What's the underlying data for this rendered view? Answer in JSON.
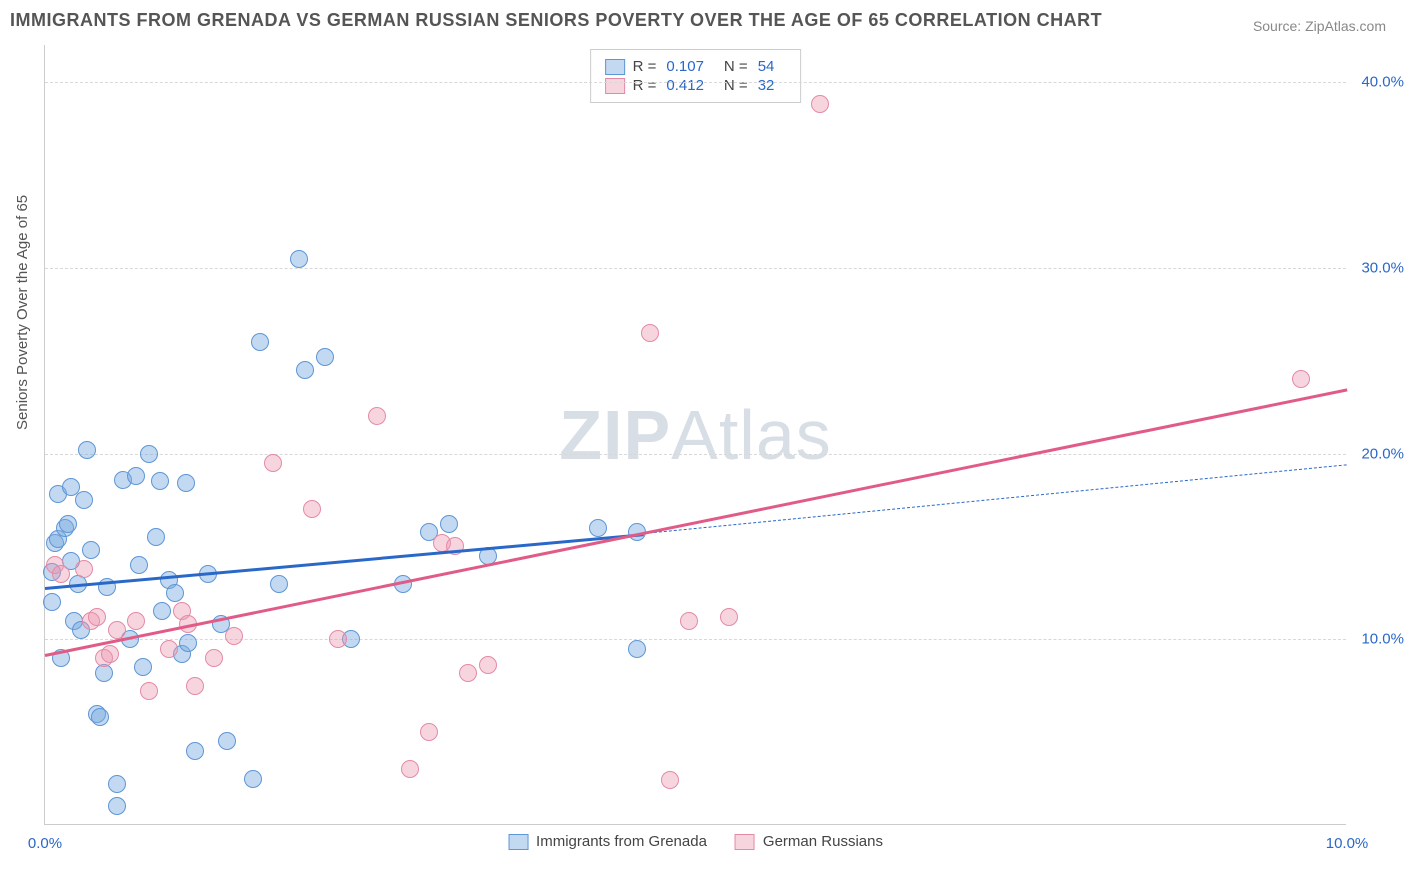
{
  "title": "IMMIGRANTS FROM GRENADA VS GERMAN RUSSIAN SENIORS POVERTY OVER THE AGE OF 65 CORRELATION CHART",
  "source_label": "Source: ZipAtlas.com",
  "y_axis_label": "Seniors Poverty Over the Age of 65",
  "watermark_a": "ZIP",
  "watermark_b": "Atlas",
  "chart": {
    "type": "scatter",
    "background_color": "#ffffff",
    "grid_color": "#d8d8d8",
    "xlim": [
      0,
      10
    ],
    "ylim": [
      0,
      42
    ],
    "x_ticks": [
      {
        "v": 0,
        "label": "0.0%"
      },
      {
        "v": 10,
        "label": "10.0%"
      }
    ],
    "y_ticks": [
      {
        "v": 10,
        "label": "10.0%"
      },
      {
        "v": 20,
        "label": "20.0%"
      },
      {
        "v": 30,
        "label": "30.0%"
      },
      {
        "v": 40,
        "label": "40.0%"
      }
    ],
    "title_fontsize": 18,
    "axis_tick_color": "#2968c8",
    "label_fontsize": 15
  },
  "series": [
    {
      "key": "grenada",
      "label": "Immigrants from Grenada",
      "fill_color": "rgba(120,170,225,0.45)",
      "stroke_color": "#5e96d6",
      "line_color": "#2968c8",
      "trend": {
        "x1": 0,
        "y1": 12.8,
        "x2": 4.6,
        "y2": 15.7,
        "dashed_extend_to_x": 10,
        "dashed_y": 19.4
      },
      "R": "0.107",
      "N": "54",
      "points": [
        [
          0.05,
          13.6
        ],
        [
          0.05,
          12.0
        ],
        [
          0.08,
          15.2
        ],
        [
          0.1,
          15.4
        ],
        [
          0.1,
          17.8
        ],
        [
          0.12,
          9.0
        ],
        [
          0.15,
          16.0
        ],
        [
          0.18,
          16.2
        ],
        [
          0.2,
          18.2
        ],
        [
          0.2,
          14.2
        ],
        [
          0.22,
          11.0
        ],
        [
          0.25,
          13.0
        ],
        [
          0.28,
          10.5
        ],
        [
          0.3,
          17.5
        ],
        [
          0.32,
          20.2
        ],
        [
          0.35,
          14.8
        ],
        [
          0.4,
          6.0
        ],
        [
          0.42,
          5.8
        ],
        [
          0.45,
          8.2
        ],
        [
          0.48,
          12.8
        ],
        [
          0.55,
          2.2
        ],
        [
          0.55,
          1.0
        ],
        [
          0.6,
          18.6
        ],
        [
          0.65,
          10.0
        ],
        [
          0.7,
          18.8
        ],
        [
          0.72,
          14.0
        ],
        [
          0.75,
          8.5
        ],
        [
          0.8,
          20.0
        ],
        [
          0.85,
          15.5
        ],
        [
          0.88,
          18.5
        ],
        [
          0.9,
          11.5
        ],
        [
          0.95,
          13.2
        ],
        [
          1.0,
          12.5
        ],
        [
          1.05,
          9.2
        ],
        [
          1.08,
          18.4
        ],
        [
          1.1,
          9.8
        ],
        [
          1.15,
          4.0
        ],
        [
          1.25,
          13.5
        ],
        [
          1.35,
          10.8
        ],
        [
          1.4,
          4.5
        ],
        [
          1.6,
          2.5
        ],
        [
          1.65,
          26.0
        ],
        [
          1.8,
          13.0
        ],
        [
          1.95,
          30.5
        ],
        [
          2.0,
          24.5
        ],
        [
          2.15,
          25.2
        ],
        [
          2.35,
          10.0
        ],
        [
          2.75,
          13.0
        ],
        [
          2.95,
          15.8
        ],
        [
          3.1,
          16.2
        ],
        [
          3.4,
          14.5
        ],
        [
          4.25,
          16.0
        ],
        [
          4.55,
          15.8
        ],
        [
          4.55,
          9.5
        ]
      ]
    },
    {
      "key": "german_russian",
      "label": "German Russians",
      "fill_color": "rgba(235,150,175,0.40)",
      "stroke_color": "#e48aa6",
      "line_color": "#e15b87",
      "trend": {
        "x1": 0,
        "y1": 9.2,
        "x2": 10,
        "y2": 23.5
      },
      "R": "0.412",
      "N": "32",
      "points": [
        [
          0.08,
          14.0
        ],
        [
          0.12,
          13.5
        ],
        [
          0.3,
          13.8
        ],
        [
          0.35,
          11.0
        ],
        [
          0.4,
          11.2
        ],
        [
          0.45,
          9.0
        ],
        [
          0.5,
          9.2
        ],
        [
          0.55,
          10.5
        ],
        [
          0.7,
          11.0
        ],
        [
          0.8,
          7.2
        ],
        [
          0.95,
          9.5
        ],
        [
          1.05,
          11.5
        ],
        [
          1.1,
          10.8
        ],
        [
          1.15,
          7.5
        ],
        [
          1.3,
          9.0
        ],
        [
          1.45,
          10.2
        ],
        [
          1.75,
          19.5
        ],
        [
          2.05,
          17.0
        ],
        [
          2.25,
          10.0
        ],
        [
          2.55,
          22.0
        ],
        [
          2.8,
          3.0
        ],
        [
          2.95,
          5.0
        ],
        [
          3.05,
          15.2
        ],
        [
          3.15,
          15.0
        ],
        [
          3.25,
          8.2
        ],
        [
          3.4,
          8.6
        ],
        [
          4.65,
          26.5
        ],
        [
          4.8,
          2.4
        ],
        [
          4.95,
          11.0
        ],
        [
          5.25,
          11.2
        ],
        [
          5.95,
          38.8
        ],
        [
          9.65,
          24.0
        ]
      ]
    }
  ],
  "legend_top": {
    "r_label": "R =",
    "n_label": "N ="
  }
}
